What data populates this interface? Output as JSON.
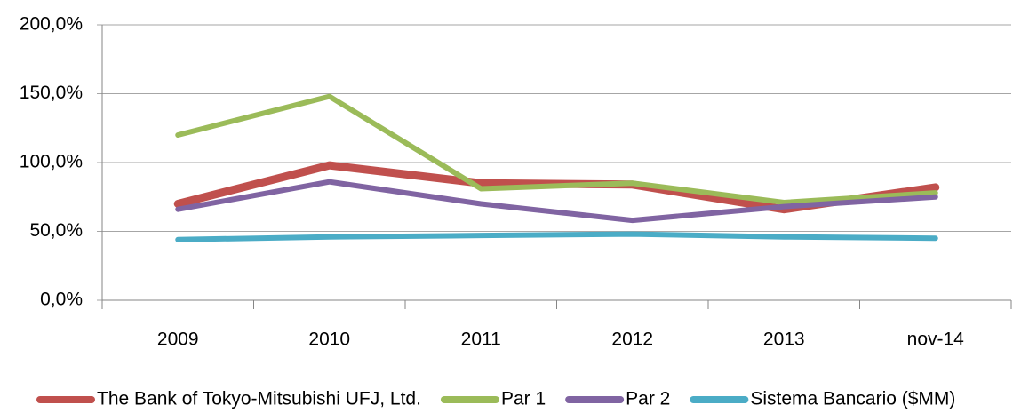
{
  "chart_data": {
    "type": "line",
    "categories": [
      "2009",
      "2010",
      "2011",
      "2012",
      "2013",
      "nov-14"
    ],
    "series": [
      {
        "name": "The Bank of Tokyo-Mitsubishi UFJ, Ltd.",
        "color": "#c0504d",
        "values": [
          70,
          98,
          85,
          84,
          66,
          82
        ]
      },
      {
        "name": "Par 1",
        "color": "#9bbb59",
        "values": [
          120,
          148,
          81,
          85,
          71,
          78
        ]
      },
      {
        "name": "Par 2",
        "color": "#8064a2",
        "values": [
          66,
          86,
          70,
          58,
          68,
          75
        ]
      },
      {
        "name": "Sistema Bancario ($MM)",
        "color": "#4bacc6",
        "values": [
          44,
          46,
          47,
          48,
          46,
          45
        ]
      }
    ],
    "ylim": [
      0,
      200
    ],
    "yticks": [
      {
        "value": 0,
        "label": "0,0%"
      },
      {
        "value": 50,
        "label": "50,0%"
      },
      {
        "value": 100,
        "label": "100,0%"
      },
      {
        "value": 150,
        "label": "150,0%"
      },
      {
        "value": 200,
        "label": "200,0%"
      }
    ],
    "grid": true,
    "legend": "bottom"
  }
}
